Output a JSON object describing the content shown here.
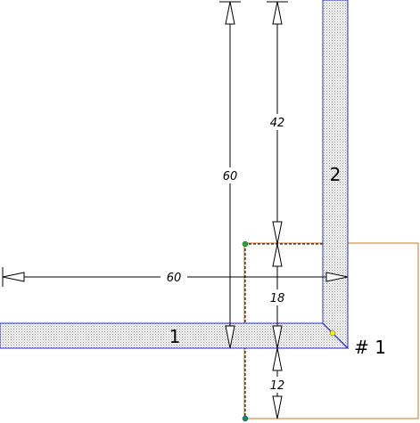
{
  "parts": {
    "part_1_label": "1",
    "part_2_label": "2",
    "section_label": "# 1"
  },
  "dimensions": {
    "horizontal_length": "60",
    "vertical_length": "60",
    "vertical_upper": "42",
    "vertical_middle": "18",
    "vertical_lower": "12"
  },
  "colors": {
    "outline": "#2233cc",
    "hatch": "#8a8a8a",
    "section_outline": "#cc7722",
    "marker_green": "#22aa33",
    "marker_yellow": "#ffee00",
    "marker_teal": "#118877"
  }
}
